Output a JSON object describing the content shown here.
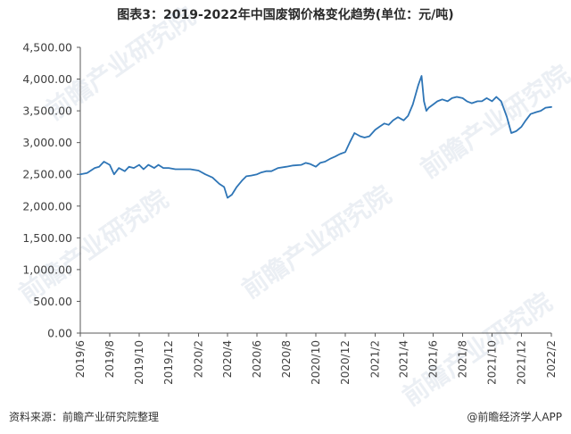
{
  "title": "图表3：2019-2022年中国废钢价格变化趋势(单位：元/吨)",
  "source": "资料来源：前瞻产业研究院整理",
  "credit": "@前瞻经济学人APP",
  "colors": {
    "line": "#2e75b6",
    "axis": "#595959",
    "text": "#404040"
  },
  "chart_data": {
    "type": "line",
    "title": "图表3：2019-2022年中国废钢价格变化趋势(单位：元/吨)",
    "xlabel": "",
    "ylabel": "",
    "ylim": [
      0,
      4500
    ],
    "grid": false,
    "legend": "none",
    "yticks": [
      "0.00",
      "500.00",
      "1,000.00",
      "1,500.00",
      "2,000.00",
      "2,500.00",
      "3,000.00",
      "3,500.00",
      "4,000.00",
      "4,500.00"
    ],
    "xticks": [
      "2019/6",
      "2019/8",
      "2019/10",
      "2019/12",
      "2020/2",
      "2020/4",
      "2020/6",
      "2020/8",
      "2020/10",
      "2020/12",
      "2021/2",
      "2021/4",
      "2021/6",
      "2021/8",
      "2021/10",
      "2021/12",
      "2022/2"
    ],
    "x_range": [
      "2019-06-01",
      "2022-02-01"
    ],
    "series": [
      {
        "x": [
          "2019-06-01",
          "2019-06-15",
          "2019-07-01",
          "2019-07-10",
          "2019-07-20",
          "2019-08-01",
          "2019-08-10",
          "2019-08-20",
          "2019-09-01",
          "2019-09-10",
          "2019-09-20",
          "2019-10-01",
          "2019-10-10",
          "2019-10-20",
          "2019-11-01",
          "2019-11-10",
          "2019-11-20",
          "2019-12-01",
          "2019-12-15",
          "2020-01-01",
          "2020-01-15",
          "2020-02-01",
          "2020-02-15",
          "2020-03-01",
          "2020-03-15",
          "2020-03-25",
          "2020-04-01",
          "2020-04-10",
          "2020-04-20",
          "2020-05-01",
          "2020-05-10",
          "2020-05-20",
          "2020-06-01",
          "2020-06-10",
          "2020-06-20",
          "2020-07-01",
          "2020-07-15",
          "2020-08-01",
          "2020-08-15",
          "2020-09-01",
          "2020-09-10",
          "2020-09-20",
          "2020-10-01",
          "2020-10-10",
          "2020-10-20",
          "2020-11-01",
          "2020-11-10",
          "2020-11-20",
          "2020-12-01",
          "2020-12-10",
          "2020-12-20",
          "2021-01-01",
          "2021-01-10",
          "2021-01-20",
          "2021-02-01",
          "2021-02-10",
          "2021-02-20",
          "2021-03-01",
          "2021-03-10",
          "2021-03-20",
          "2021-04-01",
          "2021-04-10",
          "2021-04-20",
          "2021-05-01",
          "2021-05-08",
          "2021-05-13",
          "2021-05-18",
          "2021-05-23",
          "2021-06-01",
          "2021-06-10",
          "2021-06-20",
          "2021-07-01",
          "2021-07-10",
          "2021-07-20",
          "2021-08-01",
          "2021-08-10",
          "2021-08-20",
          "2021-09-01",
          "2021-09-10",
          "2021-09-20",
          "2021-10-01",
          "2021-10-10",
          "2021-10-20",
          "2021-11-01",
          "2021-11-10",
          "2021-11-20",
          "2021-12-01",
          "2021-12-10",
          "2021-12-20",
          "2022-01-01",
          "2022-01-10",
          "2022-01-20",
          "2022-02-01"
        ],
        "values": [
          2500,
          2520,
          2600,
          2620,
          2700,
          2650,
          2500,
          2600,
          2550,
          2620,
          2600,
          2650,
          2580,
          2650,
          2600,
          2650,
          2600,
          2600,
          2580,
          2580,
          2580,
          2560,
          2500,
          2450,
          2350,
          2300,
          2130,
          2180,
          2300,
          2400,
          2470,
          2480,
          2500,
          2530,
          2550,
          2550,
          2600,
          2620,
          2640,
          2650,
          2680,
          2660,
          2620,
          2680,
          2700,
          2750,
          2780,
          2820,
          2850,
          3000,
          3150,
          3100,
          3080,
          3100,
          3200,
          3250,
          3300,
          3280,
          3350,
          3400,
          3350,
          3420,
          3600,
          3900,
          4050,
          3650,
          3500,
          3550,
          3600,
          3650,
          3680,
          3650,
          3700,
          3720,
          3700,
          3650,
          3620,
          3650,
          3650,
          3700,
          3650,
          3720,
          3650,
          3400,
          3150,
          3180,
          3250,
          3350,
          3450,
          3480,
          3500,
          3550,
          3560
        ]
      }
    ]
  }
}
